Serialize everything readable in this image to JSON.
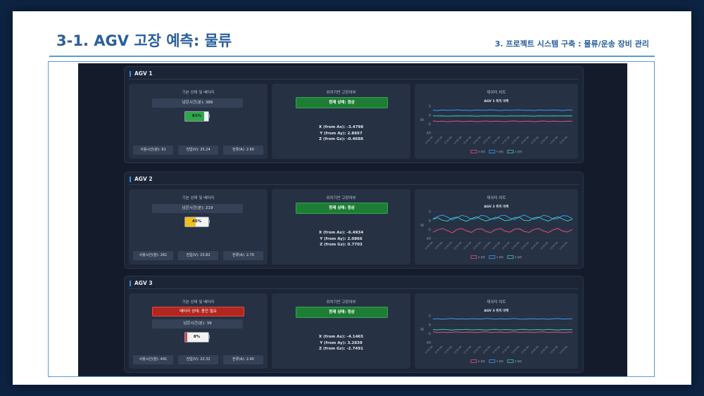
{
  "slide": {
    "title": "3-1. AGV 고장 예측: 물류",
    "subtitle": "3. 프로젝트 시스템 구축 : 물류/운송 장비 관리"
  },
  "colors": {
    "accent": "#2a5f9e",
    "battery_ok": "#2fa64a",
    "battery_mid": "#f2c01e",
    "battery_low": "#d64545",
    "status_ok": "#1e7d35",
    "series_x": "#e0507a",
    "series_y": "#3b9bf0",
    "series_z": "#3ec8b4"
  },
  "section_titles": {
    "basic": "기본 상태 및 배터리",
    "position": "위치기반 고장여부",
    "chart": "데이터 차트"
  },
  "agvs": [
    {
      "name": "AGV 1",
      "warning": "",
      "remaining": "남은시간(분): 389",
      "battery_label": "81%",
      "battery_level": 0.81,
      "battery_color": "#2fa64a",
      "usage": "사용시간(분): 91",
      "voltage": "전압(V): 25.24",
      "current": "전류(A): 2.60",
      "status": "현재 상태: 정상",
      "x_from": "X (from Ax):  -3.4798",
      "y_from": "Y (from Ay):  2.8667",
      "z_from": "Z (from Gz):  -0.4688"
    },
    {
      "name": "AGV 2",
      "warning": "",
      "remaining": "남은시간(분): 219",
      "battery_label": "45%",
      "battery_level": 0.45,
      "battery_color": "#f2c01e",
      "usage": "사용시간(분): 261",
      "voltage": "전압(V): 23.82",
      "current": "전류(A): 2.70",
      "status": "현재 상태: 정상",
      "x_from": "X (from Ax):  -6.4934",
      "y_from": "Y (from Ay):  2.0866",
      "z_from": "Z (from Gz):  0.7703"
    },
    {
      "name": "AGV 3",
      "warning": "배터리 상태: 충전 필요",
      "remaining": "남은시간(분): 39",
      "battery_label": "8%",
      "battery_level": 0.08,
      "battery_color": "#d64545",
      "usage": "사용시간(분): 441",
      "voltage": "전압(V): 22.32",
      "current": "전류(A): 2.40",
      "status": "현재 상태: 정상",
      "x_from": "X (from Ax):  -4.1465",
      "y_from": "Y (from Ay):  3.2839",
      "z_from": "Z (from Gz):  -2.7491"
    }
  ],
  "chart_data": [
    {
      "type": "line",
      "title": "AGV 1 위치 이력",
      "ylabel": "값",
      "ylim": [
        -10,
        5
      ],
      "yticks": [
        5,
        0,
        -5,
        -10
      ],
      "x_tick_label": "12:07:00",
      "x": [
        1,
        2,
        3,
        4,
        5,
        6,
        7,
        8,
        9,
        10,
        11,
        12,
        13,
        14,
        15,
        16,
        17,
        18,
        19,
        20,
        21,
        22,
        23,
        24,
        25,
        26,
        27,
        28,
        29,
        30
      ],
      "series": [
        {
          "name": "X 위치",
          "color": "#e0507a",
          "values": [
            -3.3,
            -3.6,
            -3.4,
            -3.7,
            -3.5,
            -3.3,
            -3.6,
            -3.5,
            -3.4,
            -3.7,
            -3.5,
            -3.3,
            -3.6,
            -3.4,
            -3.5,
            -3.7,
            -3.4,
            -3.3,
            -3.6,
            -3.5,
            -3.4,
            -3.7,
            -3.5,
            -3.3,
            -3.6,
            -3.4,
            -3.5,
            -3.6,
            -3.4,
            -3.5
          ]
        },
        {
          "name": "Y 위치",
          "color": "#3b9bf0",
          "values": [
            2.8,
            2.6,
            2.9,
            2.7,
            2.8,
            3.0,
            2.7,
            2.8,
            2.6,
            2.9,
            2.8,
            2.7,
            3.0,
            2.8,
            2.6,
            2.9,
            2.7,
            2.8,
            3.0,
            2.7,
            2.8,
            2.6,
            2.9,
            2.8,
            2.7,
            2.9,
            2.8,
            2.6,
            2.9,
            2.8
          ]
        },
        {
          "name": "Z 위치",
          "color": "#3ec8b4",
          "values": [
            -0.4,
            -0.5,
            -0.4,
            -0.6,
            -0.5,
            -0.4,
            -0.5,
            -0.5,
            -0.4,
            -0.6,
            -0.5,
            -0.4,
            -0.5,
            -0.4,
            -0.5,
            -0.6,
            -0.4,
            -0.5,
            -0.5,
            -0.4,
            -0.5,
            -0.6,
            -0.4,
            -0.5,
            -0.5,
            -0.4,
            -0.5,
            -0.5,
            -0.4,
            -0.5
          ]
        }
      ]
    },
    {
      "type": "line",
      "title": "AGV 2 위치 이력",
      "ylabel": "값",
      "ylim": [
        -10,
        5
      ],
      "yticks": [
        5,
        0,
        -5,
        -10
      ],
      "x_tick_label": "12:07:00",
      "x": [
        1,
        2,
        3,
        4,
        5,
        6,
        7,
        8,
        9,
        10,
        11,
        12,
        13,
        14,
        15,
        16,
        17,
        18,
        19,
        20,
        21,
        22,
        23,
        24,
        25,
        26,
        27,
        28,
        29,
        30
      ],
      "series": [
        {
          "name": "X 위치",
          "color": "#e0507a",
          "values": [
            -6.5,
            -5.2,
            -4.4,
            -5.6,
            -6.8,
            -5.0,
            -4.3,
            -5.8,
            -6.6,
            -4.9,
            -4.5,
            -6.0,
            -6.7,
            -5.1,
            -4.4,
            -5.9,
            -6.5,
            -4.8,
            -4.6,
            -6.1,
            -6.6,
            -5.0,
            -4.4,
            -5.8,
            -6.7,
            -5.2,
            -4.3,
            -5.9,
            -6.4,
            -4.9
          ]
        },
        {
          "name": "Y 위치",
          "color": "#3b9bf0",
          "values": [
            1.0,
            2.4,
            3.1,
            2.0,
            0.5,
            1.6,
            3.0,
            2.3,
            0.8,
            1.2,
            2.9,
            2.6,
            0.9,
            1.0,
            2.7,
            3.0,
            1.4,
            0.6,
            2.2,
            3.1,
            1.8,
            0.7,
            1.6,
            3.0,
            2.4,
            0.9,
            1.2,
            2.8,
            2.6,
            1.1
          ]
        },
        {
          "name": "Z 위치",
          "color": "#3ec8b4",
          "values": [
            0.8,
            1.6,
            0.2,
            -0.3,
            1.4,
            2.0,
            0.5,
            -0.4,
            1.1,
            2.1,
            0.9,
            -0.2,
            0.7,
            1.9,
            1.3,
            -0.1,
            0.3,
            1.7,
            1.8,
            0.1,
            0.0,
            1.5,
            2.0,
            0.6,
            -0.3,
            1.2,
            2.1,
            0.8,
            -0.2,
            0.8
          ]
        }
      ]
    },
    {
      "type": "line",
      "title": "AGV 3 위치 이력",
      "ylabel": "값",
      "ylim": [
        -10,
        5
      ],
      "yticks": [
        5,
        0,
        -5,
        -10
      ],
      "x_tick_label": "12:07:00",
      "x": [
        1,
        2,
        3,
        4,
        5,
        6,
        7,
        8,
        9,
        10,
        11,
        12,
        13,
        14,
        15,
        16,
        17,
        18,
        19,
        20,
        21,
        22,
        23,
        24,
        25,
        26,
        27,
        28,
        29,
        30
      ],
      "series": [
        {
          "name": "X 위치",
          "color": "#e0507a",
          "values": [
            -4.0,
            -4.3,
            -4.1,
            -4.4,
            -4.2,
            -4.0,
            -4.3,
            -4.1,
            -4.2,
            -4.4,
            -4.1,
            -4.0,
            -4.3,
            -4.2,
            -4.1,
            -4.4,
            -4.2,
            -4.0,
            -4.3,
            -4.1,
            -4.2,
            -4.3,
            -4.1,
            -4.0,
            -4.3,
            -4.2,
            -4.1,
            -4.4,
            -4.2,
            -4.1
          ]
        },
        {
          "name": "Y 위치",
          "color": "#3b9bf0",
          "values": [
            3.2,
            3.4,
            3.1,
            3.3,
            3.5,
            3.2,
            3.3,
            3.1,
            3.4,
            3.3,
            3.2,
            3.5,
            3.3,
            3.1,
            3.4,
            3.2,
            3.3,
            3.5,
            3.2,
            3.1,
            3.4,
            3.3,
            3.2,
            3.4,
            3.1,
            3.3,
            3.5,
            3.2,
            3.3,
            3.3
          ]
        },
        {
          "name": "Z 위치",
          "color": "#3ec8b4",
          "values": [
            -2.7,
            -2.9,
            -2.6,
            -2.8,
            -3.0,
            -2.7,
            -2.8,
            -2.6,
            -2.9,
            -2.8,
            -2.7,
            -3.0,
            -2.8,
            -2.6,
            -2.9,
            -2.7,
            -2.8,
            -3.0,
            -2.7,
            -2.6,
            -2.9,
            -2.8,
            -2.7,
            -2.9,
            -2.6,
            -2.8,
            -3.0,
            -2.7,
            -2.8,
            -2.7
          ]
        }
      ]
    }
  ]
}
